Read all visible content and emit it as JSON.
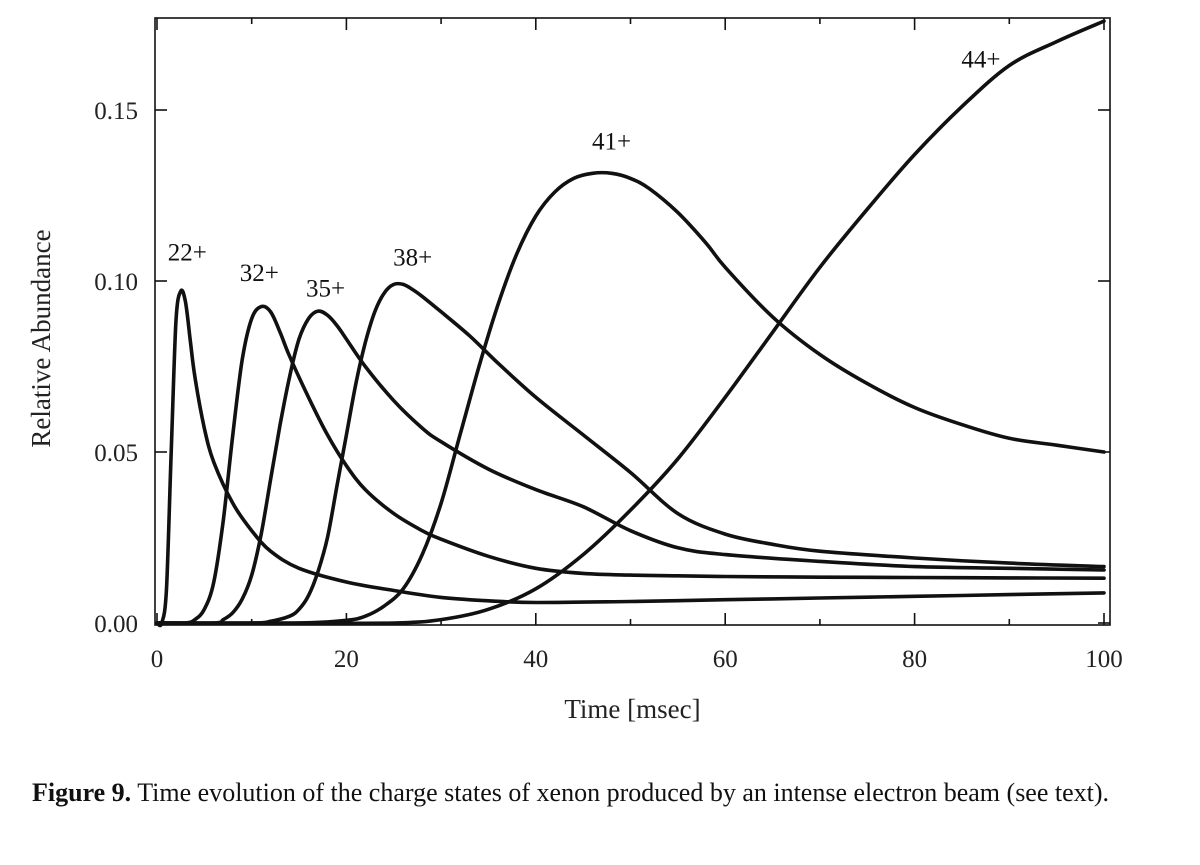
{
  "chart_data": {
    "type": "line",
    "xlabel": "Time [msec]",
    "ylabel": "Relative Abundance",
    "xlim": [
      0,
      100
    ],
    "ylim": [
      0,
      0.175
    ],
    "xticks": [
      0,
      20,
      40,
      60,
      80,
      100
    ],
    "xtick_labels": [
      "0",
      "20",
      "40",
      "60",
      "80",
      "100"
    ],
    "yticks": [
      0,
      0.05,
      0.1,
      0.15
    ],
    "ytick_labels": [
      "0.00",
      "0.05",
      "0.10",
      "0.15"
    ],
    "grid": false,
    "legend": "none",
    "series": [
      {
        "name": "22+",
        "label_at": [
          3.2,
          0.106
        ],
        "x": [
          0.5,
          1.0,
          1.5,
          2.0,
          2.5,
          3.0,
          3.5,
          4.0,
          5.0,
          6.0,
          8.0,
          10.0,
          12.0,
          15.0,
          20.0,
          25.0,
          30.0,
          35.0,
          40.0,
          50.0,
          60.0,
          70.0,
          80.0,
          90.0,
          100.0
        ],
        "y": [
          0.0,
          0.01,
          0.05,
          0.088,
          0.097,
          0.094,
          0.083,
          0.072,
          0.057,
          0.047,
          0.035,
          0.027,
          0.021,
          0.016,
          0.012,
          0.0095,
          0.0075,
          0.0065,
          0.006,
          0.0063,
          0.0068,
          0.0073,
          0.0078,
          0.0083,
          0.0088
        ]
      },
      {
        "name": "32+",
        "label_at": [
          10.8,
          0.1
        ],
        "x": [
          3.0,
          4.0,
          5.0,
          6.0,
          7.0,
          8.0,
          9.0,
          10.0,
          11.0,
          12.0,
          13.0,
          14.0,
          16.0,
          18.0,
          20.0,
          22.0,
          25.0,
          28.0,
          30.0,
          35.0,
          40.0,
          45.0,
          50.0,
          55.0,
          60.0,
          70.0,
          80.0,
          90.0,
          100.0
        ],
        "y": [
          0.0,
          0.001,
          0.004,
          0.012,
          0.03,
          0.055,
          0.077,
          0.089,
          0.0925,
          0.091,
          0.085,
          0.078,
          0.066,
          0.055,
          0.046,
          0.039,
          0.032,
          0.027,
          0.0245,
          0.0195,
          0.016,
          0.0145,
          0.014,
          0.0138,
          0.0136,
          0.0134,
          0.0133,
          0.0132,
          0.0131
        ]
      },
      {
        "name": "35+",
        "label_at": [
          17.8,
          0.0955
        ],
        "x": [
          6.0,
          7.0,
          8.0,
          9.0,
          10.0,
          11.0,
          12.0,
          13.0,
          14.0,
          15.0,
          16.0,
          17.0,
          18.0,
          19.0,
          20.0,
          22.0,
          25.0,
          28.0,
          30.0,
          35.0,
          40.0,
          45.0,
          50.0,
          55.0,
          60.0,
          70.0,
          80.0,
          90.0,
          100.0
        ],
        "y": [
          0.0,
          0.001,
          0.003,
          0.007,
          0.014,
          0.026,
          0.042,
          0.058,
          0.072,
          0.083,
          0.089,
          0.0912,
          0.09,
          0.087,
          0.083,
          0.075,
          0.065,
          0.057,
          0.053,
          0.045,
          0.039,
          0.034,
          0.027,
          0.022,
          0.02,
          0.018,
          0.0165,
          0.016,
          0.0155
        ]
      },
      {
        "name": "38+",
        "label_at": [
          27.0,
          0.1045
        ],
        "x": [
          10.0,
          12.0,
          14.0,
          15.0,
          16.0,
          17.0,
          18.0,
          19.0,
          20.0,
          21.0,
          22.0,
          23.0,
          24.0,
          25.0,
          26.0,
          27.0,
          28.0,
          30.0,
          33.0,
          36.0,
          40.0,
          45.0,
          50.0,
          55.0,
          60.0,
          65.0,
          70.0,
          80.0,
          90.0,
          100.0
        ],
        "y": [
          0.0,
          0.0005,
          0.002,
          0.004,
          0.008,
          0.015,
          0.025,
          0.04,
          0.055,
          0.07,
          0.082,
          0.091,
          0.0965,
          0.099,
          0.099,
          0.0975,
          0.0955,
          0.091,
          0.084,
          0.076,
          0.066,
          0.055,
          0.044,
          0.032,
          0.026,
          0.023,
          0.021,
          0.019,
          0.0175,
          0.0165
        ]
      },
      {
        "name": "41+",
        "label_at": [
          48.0,
          0.1385
        ],
        "x": [
          15.0,
          20.0,
          22.0,
          24.0,
          26.0,
          28.0,
          30.0,
          32.0,
          34.0,
          36.0,
          38.0,
          40.0,
          42.0,
          44.0,
          46.0,
          48.0,
          50.0,
          52.0,
          55.0,
          58.0,
          60.0,
          65.0,
          70.0,
          75.0,
          80.0,
          85.0,
          90.0,
          95.0,
          100.0
        ],
        "y": [
          0.0,
          0.0008,
          0.002,
          0.005,
          0.01,
          0.02,
          0.035,
          0.055,
          0.075,
          0.093,
          0.108,
          0.119,
          0.126,
          0.13,
          0.1315,
          0.1315,
          0.13,
          0.127,
          0.12,
          0.111,
          0.104,
          0.0895,
          0.0785,
          0.07,
          0.063,
          0.058,
          0.054,
          0.052,
          0.05
        ]
      },
      {
        "name": "44+",
        "label_at": [
          87.0,
          0.1625
        ],
        "x": [
          15.0,
          25.0,
          30.0,
          35.0,
          40.0,
          45.0,
          50.0,
          55.0,
          60.0,
          65.0,
          70.0,
          75.0,
          80.0,
          85.0,
          90.0,
          95.0,
          100.0
        ],
        "y": [
          0.0,
          0.0,
          0.001,
          0.004,
          0.01,
          0.02,
          0.033,
          0.048,
          0.066,
          0.085,
          0.104,
          0.121,
          0.137,
          0.151,
          0.163,
          0.17,
          0.176
        ]
      }
    ]
  },
  "caption": {
    "label": "Figure 9.",
    "text": " Time evolution of the charge states of xenon produced by an intense electron beam (see text)."
  }
}
